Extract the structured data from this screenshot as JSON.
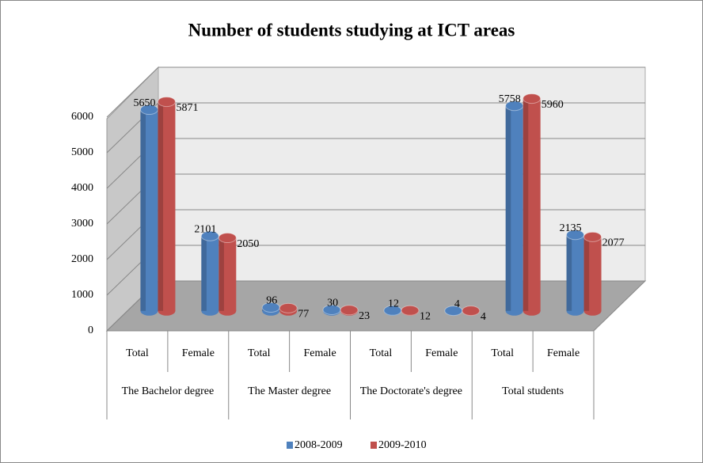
{
  "chart_data": {
    "type": "bar",
    "title": "Number of students studying at ICT areas",
    "categories": [
      "Total",
      "Female",
      "Total",
      "Female",
      "Total",
      "Female",
      "Total",
      "Female"
    ],
    "groups": [
      "The Bachelor degree",
      "The Master degree",
      "The Doctorate's degree",
      "Total students"
    ],
    "series": [
      {
        "name": "2008-2009",
        "color": "#4f81bd",
        "values": [
          5650,
          2101,
          96,
          30,
          12,
          4,
          5758,
          2135
        ]
      },
      {
        "name": "2009-2010",
        "color": "#c0504d",
        "values": [
          5871,
          2050,
          77,
          23,
          12,
          4,
          5960,
          2077
        ]
      }
    ],
    "ylim": [
      0,
      6000
    ],
    "yticks": [
      0,
      1000,
      2000,
      3000,
      4000,
      5000,
      6000
    ],
    "grid": true,
    "legend": "bottom"
  }
}
